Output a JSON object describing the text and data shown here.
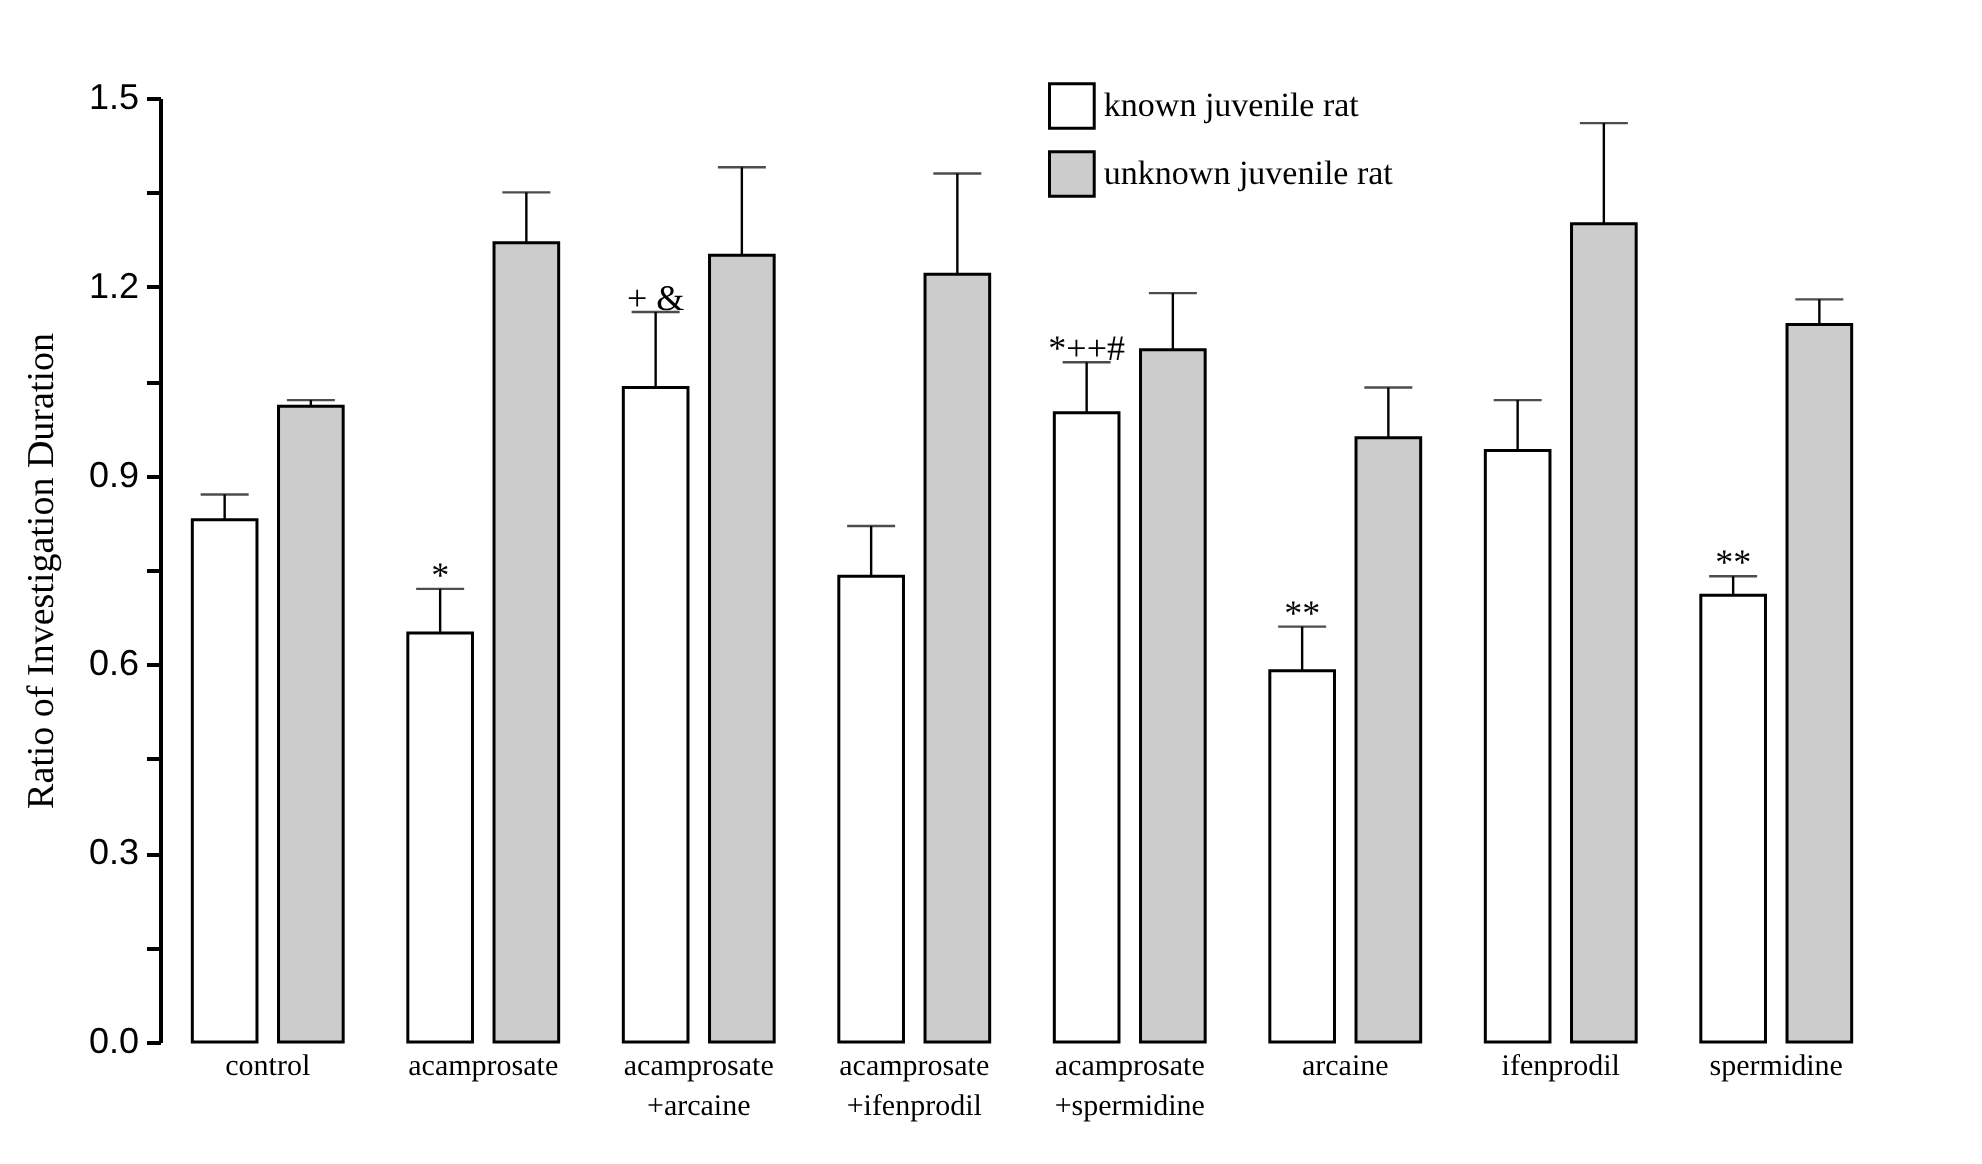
{
  "chart_data": {
    "type": "bar",
    "ylabel": "Ratio of Investigation Duration",
    "categories": [
      "control",
      "acamprosate",
      "acamprosate\n+arcaine",
      "acamprosate\n+ifenprodil",
      "acamprosate\n+spermidine",
      "arcaine",
      "ifenprodil",
      "spermidine"
    ],
    "series": [
      {
        "name": "known juvenile rat",
        "color": "#ffffff",
        "values": [
          0.83,
          0.65,
          1.04,
          0.74,
          1.0,
          0.59,
          0.94,
          0.71
        ],
        "value_labels": [
          null,
          "*",
          "+ &",
          null,
          "*++#",
          "**",
          null,
          "**"
        ],
        "errors": [
          [
            0.83,
            0.87
          ],
          [
            0.65,
            0.72
          ],
          [
            1.04,
            1.16
          ],
          [
            0.74,
            0.82
          ],
          [
            1.0,
            1.08
          ],
          [
            0.59,
            0.66
          ],
          [
            0.94,
            1.02
          ],
          [
            0.71,
            0.74
          ]
        ]
      },
      {
        "name": "unknown juvenile rat",
        "color": "#cccccc",
        "values": [
          1.01,
          1.27,
          1.25,
          1.22,
          1.1,
          0.96,
          1.3,
          1.14
        ],
        "errors": [
          [
            1.01,
            1.02
          ],
          [
            1.27,
            1.35
          ],
          [
            1.25,
            1.39
          ],
          [
            1.22,
            1.38
          ],
          [
            1.1,
            1.19
          ],
          [
            0.96,
            1.04
          ],
          [
            1.3,
            1.46
          ],
          [
            1.14,
            1.18
          ]
        ]
      }
    ],
    "ylim": [
      0,
      1.5
    ],
    "yticks": [
      {
        "value": 0,
        "label": "0.0"
      },
      {
        "value": 0.15,
        "label": null
      },
      {
        "value": 0.3,
        "label": "0.3"
      },
      {
        "value": 0.45,
        "label": null
      },
      {
        "value": 0.6,
        "label": "0.6"
      },
      {
        "value": 0.75,
        "label": null
      },
      {
        "value": 0.9,
        "label": "0.9"
      },
      {
        "value": 1.05,
        "label": null
      },
      {
        "value": 1.2,
        "label": "1.2"
      },
      {
        "value": 1.35,
        "label": null
      },
      {
        "value": 1.5,
        "label": "1.5"
      }
    ],
    "legend": "top",
    "grid": false
  }
}
